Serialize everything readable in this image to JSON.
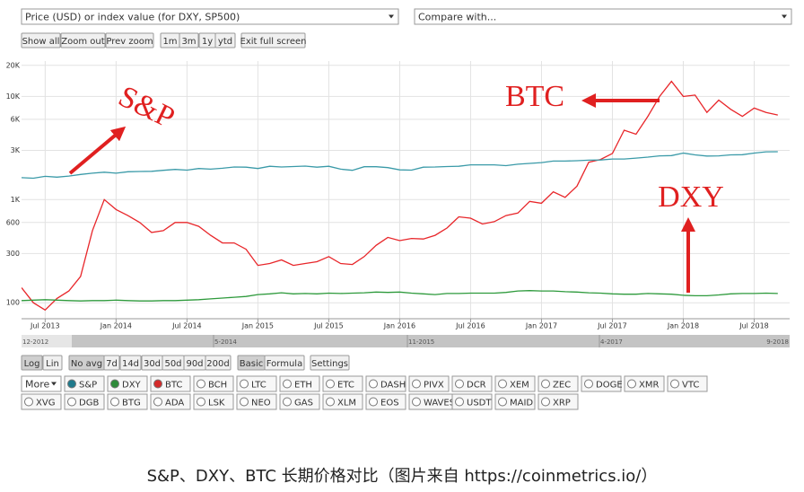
{
  "toolbar": {
    "price_select": "Price (USD) or index value (for DXY, SP500)",
    "compare_select": "Compare with...",
    "zoom_buttons": [
      "Show all",
      "Zoom out",
      "Prev zoom"
    ],
    "range_buttons": [
      "1m",
      "3m",
      "1y",
      "ytd"
    ],
    "fullscreen_button": "Exit full screen"
  },
  "chart_data": {
    "type": "line",
    "log_scale": true,
    "grid": true,
    "x": [
      "2013-05",
      "2013-06",
      "2013-07",
      "2013-08",
      "2013-09",
      "2013-10",
      "2013-11",
      "2013-12",
      "2014-01",
      "2014-02",
      "2014-03",
      "2014-04",
      "2014-05",
      "2014-06",
      "2014-07",
      "2014-08",
      "2014-09",
      "2014-10",
      "2014-11",
      "2014-12",
      "2015-01",
      "2015-02",
      "2015-03",
      "2015-04",
      "2015-05",
      "2015-06",
      "2015-07",
      "2015-08",
      "2015-09",
      "2015-10",
      "2015-11",
      "2015-12",
      "2016-01",
      "2016-02",
      "2016-03",
      "2016-04",
      "2016-05",
      "2016-06",
      "2016-07",
      "2016-08",
      "2016-09",
      "2016-10",
      "2016-11",
      "2016-12",
      "2017-01",
      "2017-02",
      "2017-03",
      "2017-04",
      "2017-05",
      "2017-06",
      "2017-07",
      "2017-08",
      "2017-09",
      "2017-10",
      "2017-11",
      "2017-12",
      "2018-01",
      "2018-02",
      "2018-03",
      "2018-04",
      "2018-05",
      "2018-06",
      "2018-07",
      "2018-08",
      "2018-09"
    ],
    "xlim": [
      "2013-05",
      "2018-10"
    ],
    "xticks": [
      {
        "value": "2013-07",
        "label": "Jul 2013"
      },
      {
        "value": "2014-01",
        "label": "Jan 2014"
      },
      {
        "value": "2014-07",
        "label": "Jul 2014"
      },
      {
        "value": "2015-01",
        "label": "Jan 2015"
      },
      {
        "value": "2015-07",
        "label": "Jul 2015"
      },
      {
        "value": "2016-01",
        "label": "Jan 2016"
      },
      {
        "value": "2016-07",
        "label": "Jul 2016"
      },
      {
        "value": "2017-01",
        "label": "Jan 2017"
      },
      {
        "value": "2017-07",
        "label": "Jul 2017"
      },
      {
        "value": "2018-01",
        "label": "Jan 2018"
      },
      {
        "value": "2018-07",
        "label": "Jul 2018"
      }
    ],
    "ylim": [
      70,
      22000
    ],
    "yticks": [
      {
        "value": 20000,
        "label": "20K"
      },
      {
        "value": 10000,
        "label": "10K"
      },
      {
        "value": 6000,
        "label": "6K"
      },
      {
        "value": 3000,
        "label": "3K"
      },
      {
        "value": 1000,
        "label": "1K"
      },
      600,
      300,
      100
    ],
    "series": [
      {
        "name": "BTC",
        "color": "#e8262a",
        "values": [
          140,
          100,
          85,
          110,
          130,
          180,
          500,
          1000,
          800,
          700,
          600,
          480,
          500,
          600,
          600,
          550,
          450,
          380,
          380,
          330,
          230,
          240,
          260,
          230,
          240,
          250,
          280,
          240,
          235,
          280,
          360,
          430,
          400,
          420,
          415,
          450,
          530,
          680,
          660,
          580,
          610,
          700,
          740,
          960,
          920,
          1190,
          1050,
          1350,
          2300,
          2450,
          2800,
          4700,
          4300,
          6400,
          10000,
          14000,
          10000,
          10300,
          7000,
          9200,
          7500,
          6400,
          7700,
          7000,
          6600
        ]
      },
      {
        "name": "S&P",
        "color": "#3a9aa8",
        "values": [
          1630,
          1610,
          1680,
          1650,
          1690,
          1750,
          1800,
          1840,
          1800,
          1860,
          1870,
          1880,
          1920,
          1960,
          1930,
          2000,
          1970,
          2010,
          2070,
          2060,
          2000,
          2100,
          2070,
          2090,
          2110,
          2060,
          2100,
          1970,
          1920,
          2080,
          2080,
          2040,
          1940,
          1930,
          2060,
          2070,
          2090,
          2100,
          2170,
          2170,
          2170,
          2130,
          2200,
          2240,
          2280,
          2360,
          2360,
          2380,
          2410,
          2420,
          2470,
          2470,
          2520,
          2580,
          2650,
          2670,
          2820,
          2710,
          2640,
          2650,
          2710,
          2720,
          2820,
          2900,
          2910
        ]
      },
      {
        "name": "DXY",
        "color": "#2e9a3c",
        "values": [
          105,
          106,
          107,
          106,
          105,
          104,
          105,
          105,
          106,
          105,
          104,
          104,
          105,
          105,
          106,
          107,
          109,
          111,
          113,
          115,
          120,
          122,
          125,
          122,
          123,
          122,
          124,
          123,
          124,
          125,
          127,
          126,
          127,
          124,
          122,
          120,
          123,
          123,
          124,
          124,
          124,
          126,
          130,
          131,
          130,
          130,
          128,
          127,
          125,
          124,
          122,
          121,
          121,
          123,
          122,
          121,
          118,
          117,
          117,
          119,
          122,
          123,
          123,
          124,
          123
        ]
      }
    ]
  },
  "navigator": {
    "labels": [
      "12-2012",
      "5-2014",
      "11-2015",
      "4-2017",
      "9-2018"
    ]
  },
  "controls": {
    "scale_buttons": [
      "Log",
      "Lin"
    ],
    "avg_buttons": [
      "No avg",
      "7d",
      "14d",
      "30d",
      "50d",
      "90d",
      "200d"
    ],
    "mode_buttons": [
      "Basic",
      "Formula"
    ],
    "settings_button": "Settings",
    "more_select": "More"
  },
  "assets": [
    {
      "name": "S&P",
      "color": "#1f7a8c"
    },
    {
      "name": "DXY",
      "color": "#2e8b3a"
    },
    {
      "name": "BTC",
      "color": "#d42a2a"
    },
    {
      "name": "BCH"
    },
    {
      "name": "LTC"
    },
    {
      "name": "ETH"
    },
    {
      "name": "ETC"
    },
    {
      "name": "DASH"
    },
    {
      "name": "PIVX"
    },
    {
      "name": "DCR"
    },
    {
      "name": "XEM"
    },
    {
      "name": "ZEC"
    },
    {
      "name": "DOGE"
    },
    {
      "name": "XMR"
    },
    {
      "name": "VTC"
    },
    {
      "name": "XVG"
    },
    {
      "name": "DGB"
    },
    {
      "name": "BTG"
    },
    {
      "name": "ADA"
    },
    {
      "name": "LSK"
    },
    {
      "name": "NEO"
    },
    {
      "name": "GAS"
    },
    {
      "name": "XLM"
    },
    {
      "name": "EOS"
    },
    {
      "name": "WAVES"
    },
    {
      "name": "USDT"
    },
    {
      "name": "MAID"
    },
    {
      "name": "XRP"
    }
  ],
  "caption": "S&P、DXY、BTC 长期价格对比（图片来自 https://coinmetrics.io/）"
}
